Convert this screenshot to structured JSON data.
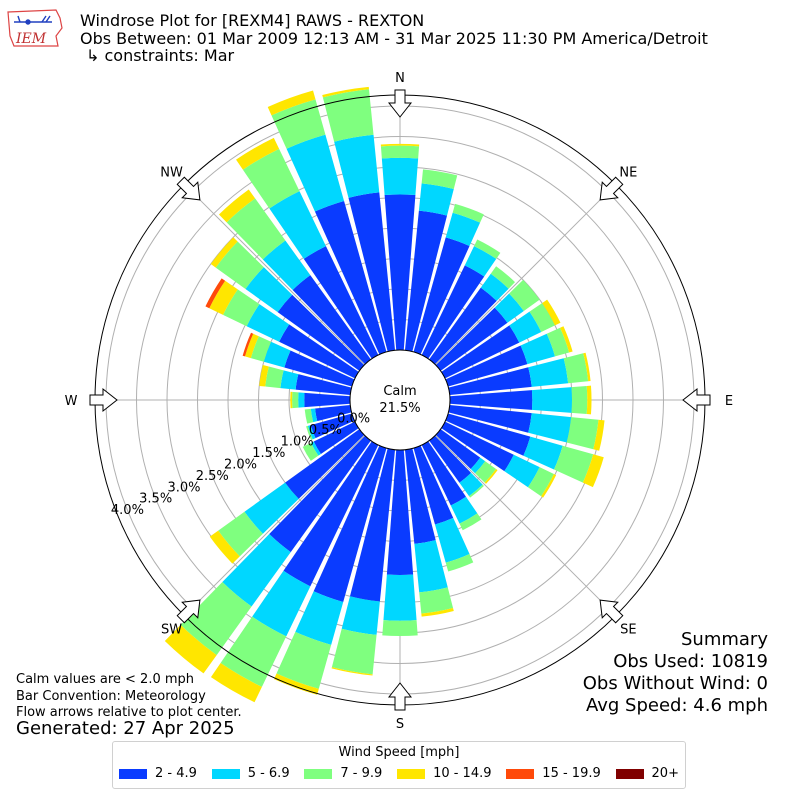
{
  "header": {
    "title": "Windrose Plot for [REXM4] RAWS - REXTON",
    "subtitle": "Obs Between: 01 Mar 2009 12:13 AM - 31 Mar 2025 11:30 PM America/Detroit",
    "constraints": "↳ constraints: Mar",
    "logo_text": "IEM"
  },
  "summary": {
    "title": "Summary",
    "obs_used": "Obs Used: 10819",
    "obs_without_wind": "Obs Without Wind: 0",
    "avg_speed": "Avg Speed: 4.6 mph"
  },
  "notes": {
    "calm_note": "Calm values are < 2.0 mph",
    "bar_convention": "Bar Convention: Meteorology",
    "flow_arrows": "Flow arrows relative to plot center.",
    "generated": "Generated: 27 Apr 2025"
  },
  "chart_data": {
    "type": "windrose",
    "calm_label": "Calm",
    "calm_value": "21.5%",
    "radial_ticks": [
      "0.0%",
      "0.5%",
      "1.0%",
      "1.5%",
      "2.0%",
      "2.5%",
      "3.0%",
      "3.5%",
      "4.0%"
    ],
    "radial_max": 4.0,
    "directions": [
      "N",
      "NE",
      "E",
      "SE",
      "S",
      "SW",
      "W",
      "NW"
    ],
    "legend_title": "Wind Speed [mph]",
    "speed_bins": [
      {
        "label": "2 - 4.9",
        "color": "#0a3bff"
      },
      {
        "label": "5 - 6.9",
        "color": "#00d7ff"
      },
      {
        "label": "7 - 9.9",
        "color": "#7fff7f"
      },
      {
        "label": "10 - 14.9",
        "color": "#ffe600"
      },
      {
        "label": "15 - 19.9",
        "color": "#ff4a0a"
      },
      {
        "label": "20+",
        "color": "#800000"
      }
    ],
    "sector_centers_deg": [
      0,
      10,
      20,
      30,
      40,
      50,
      60,
      70,
      80,
      90,
      100,
      110,
      120,
      130,
      140,
      150,
      160,
      170,
      180,
      190,
      200,
      210,
      220,
      230,
      240,
      250,
      260,
      270,
      280,
      290,
      300,
      310,
      320,
      330,
      340,
      350
    ],
    "cumulative_percent": [
      [
        2.55,
        3.15,
        3.35,
        3.38,
        0,
        0
      ],
      [
        2.3,
        2.75,
        2.98,
        2.98,
        0,
        0
      ],
      [
        1.95,
        2.37,
        2.52,
        2.52,
        0,
        0
      ],
      [
        1.63,
        1.98,
        2.1,
        2.1,
        0,
        0
      ],
      [
        1.45,
        1.73,
        1.88,
        1.88,
        0,
        0
      ],
      [
        1.35,
        1.68,
        2.0,
        2.0,
        0,
        0
      ],
      [
        1.35,
        1.75,
        2.0,
        2.1,
        0,
        0
      ],
      [
        1.35,
        1.82,
        2.06,
        2.12,
        0,
        0
      ],
      [
        1.35,
        1.95,
        2.28,
        2.32,
        0,
        0
      ],
      [
        1.35,
        2.0,
        2.25,
        2.32,
        0,
        0
      ],
      [
        1.35,
        2.0,
        2.45,
        2.55,
        0,
        0
      ],
      [
        1.4,
        1.95,
        2.47,
        2.65,
        0,
        0
      ],
      [
        1.25,
        1.72,
        1.98,
        2.02,
        0,
        0
      ],
      [
        0.8,
        0.9,
        1.12,
        1.15,
        0,
        0
      ],
      [
        0.85,
        1.12,
        1.15,
        1.15,
        0,
        0
      ],
      [
        1.1,
        1.43,
        1.55,
        1.55,
        0,
        0
      ],
      [
        1.3,
        1.95,
        2.1,
        2.1,
        0,
        0
      ],
      [
        1.55,
        2.35,
        2.7,
        2.75,
        0,
        0
      ],
      [
        2.05,
        2.8,
        3.05,
        3.05,
        0,
        0
      ],
      [
        2.5,
        3.05,
        3.7,
        3.72,
        0,
        0
      ],
      [
        2.62,
        3.35,
        4.1,
        4.2,
        0,
        0
      ],
      [
        2.57,
        3.48,
        4.4,
        4.68,
        0,
        0
      ],
      [
        2.25,
        3.35,
        4.33,
        4.7,
        4.7,
        4.7
      ],
      [
        1.5,
        2.32,
        2.85,
        3.02,
        3.02,
        3.02
      ],
      [
        0.75,
        0.8,
        0.95,
        0.95,
        0,
        0
      ],
      [
        0.7,
        0.75,
        0.78,
        0.78,
        0,
        0
      ],
      [
        0.58,
        0.65,
        0.75,
        0.75,
        0,
        0
      ],
      [
        0.75,
        0.85,
        0.95,
        0.98,
        0,
        0
      ],
      [
        0.9,
        1.15,
        1.4,
        1.5,
        0,
        0
      ],
      [
        1.15,
        1.5,
        1.72,
        1.82,
        1.86,
        1.86
      ],
      [
        1.38,
        1.97,
        2.4,
        2.65,
        2.72,
        2.72
      ],
      [
        1.65,
        2.3,
        2.9,
        3.0,
        0,
        0
      ],
      [
        1.7,
        2.4,
        3.25,
        3.43,
        0,
        0
      ],
      [
        1.98,
        2.98,
        3.75,
        3.95,
        0,
        0
      ],
      [
        2.57,
        3.7,
        4.3,
        4.45,
        0,
        0
      ],
      [
        2.6,
        3.55,
        4.3,
        4.34,
        0,
        0
      ]
    ]
  }
}
